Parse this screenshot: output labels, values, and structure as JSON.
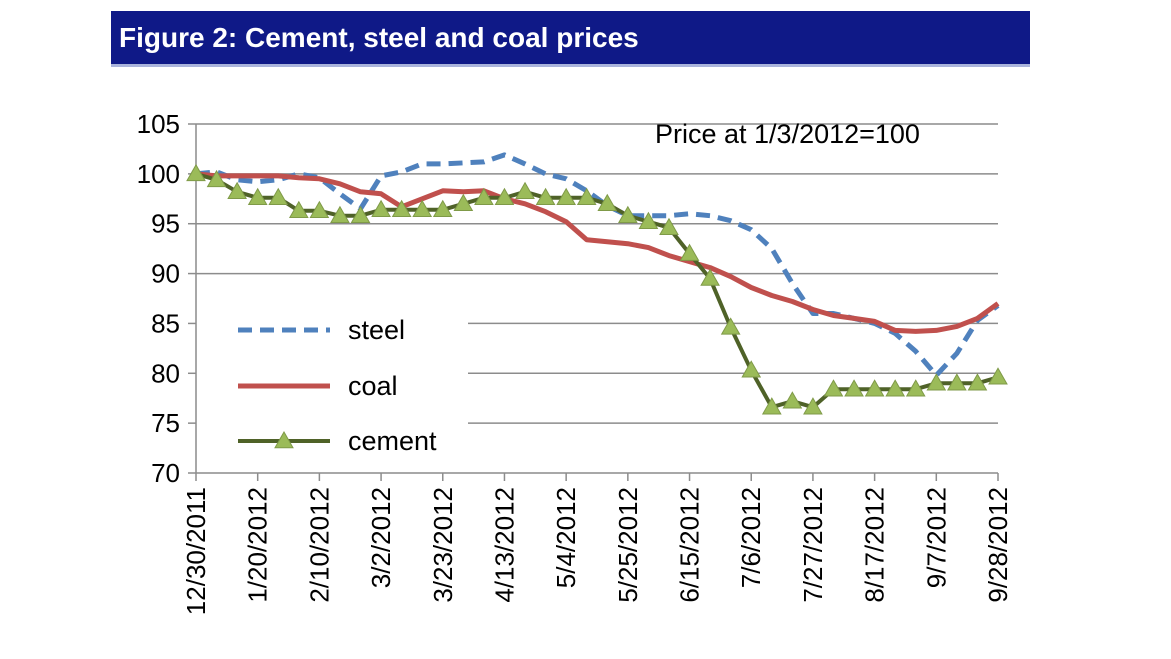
{
  "figure": {
    "title": "Figure 2: Cement, steel and coal prices"
  },
  "chart_data": {
    "type": "line",
    "title": "Figure 2: Cement, steel and coal prices",
    "annotation": "Price at 1/3/2012=100",
    "xlabel": "",
    "ylabel": "",
    "ylim": [
      70,
      105
    ],
    "yticks": [
      70,
      75,
      80,
      85,
      90,
      95,
      100,
      105
    ],
    "x_tick_labels": [
      "12/30/2011",
      "1/20/2012",
      "2/10/2012",
      "3/2/2012",
      "3/23/2012",
      "4/13/2012",
      "5/4/2012",
      "5/25/2012",
      "6/15/2012",
      "7/6/2012",
      "7/27/2012",
      "8/17/2012",
      "9/7/2012",
      "9/28/2012"
    ],
    "x": [
      "12/30/2011",
      "1/6/2012",
      "1/13/2012",
      "1/20/2012",
      "1/27/2012",
      "2/3/2012",
      "2/10/2012",
      "2/17/2012",
      "2/24/2012",
      "3/2/2012",
      "3/9/2012",
      "3/16/2012",
      "3/23/2012",
      "3/30/2012",
      "4/6/2012",
      "4/13/2012",
      "4/20/2012",
      "4/27/2012",
      "5/4/2012",
      "5/11/2012",
      "5/18/2012",
      "5/25/2012",
      "6/1/2012",
      "6/8/2012",
      "6/15/2012",
      "6/22/2012",
      "6/29/2012",
      "7/6/2012",
      "7/13/2012",
      "7/20/2012",
      "7/27/2012",
      "8/3/2012",
      "8/10/2012",
      "8/17/2012",
      "8/24/2012",
      "8/31/2012",
      "9/7/2012",
      "9/14/2012",
      "9/21/2012",
      "9/28/2012"
    ],
    "grid": true,
    "legend_position": "bottom-left",
    "series": [
      {
        "name": "steel",
        "color": "#4f81bd",
        "style": "dashed",
        "marker": "none",
        "values": [
          100,
          100.2,
          99.4,
          99.2,
          99.4,
          100,
          99.6,
          98,
          96.5,
          99.8,
          100.2,
          101,
          101,
          101.1,
          101.2,
          101.9,
          101,
          100,
          99.5,
          98.3,
          96.8,
          95.8,
          95.8,
          95.8,
          96,
          95.8,
          95.3,
          94.4,
          92.5,
          89,
          86,
          86,
          85.5,
          85,
          84,
          82.2,
          79.8,
          82,
          85.3,
          86.8
        ]
      },
      {
        "name": "coal",
        "color": "#c0504d",
        "style": "solid",
        "marker": "none",
        "values": [
          100,
          99.8,
          99.8,
          99.8,
          99.8,
          99.6,
          99.5,
          99,
          98.2,
          98,
          96.7,
          97.5,
          98.3,
          98.2,
          98.3,
          97.5,
          97,
          96.2,
          95.2,
          93.4,
          93.2,
          93,
          92.6,
          91.8,
          91.2,
          90.6,
          89.7,
          88.6,
          87.8,
          87.2,
          86.4,
          85.8,
          85.5,
          85.2,
          84.3,
          84.2,
          84.3,
          84.7,
          85.5,
          87
        ]
      },
      {
        "name": "cement",
        "color": "#4f6228",
        "style": "solid",
        "marker": "triangle",
        "marker_color": "#9bbb59",
        "values": [
          100,
          99.4,
          98.2,
          97.6,
          97.6,
          96.3,
          96.3,
          95.8,
          95.8,
          96.4,
          96.4,
          96.4,
          96.4,
          97,
          97.6,
          97.6,
          98.2,
          97.6,
          97.6,
          97.6,
          97,
          95.8,
          95.2,
          94.6,
          92,
          89.5,
          84.6,
          80.3,
          76.6,
          77.2,
          76.6,
          78.4,
          78.4,
          78.4,
          78.4,
          78.4,
          79,
          79,
          79,
          79.6
        ]
      }
    ]
  }
}
